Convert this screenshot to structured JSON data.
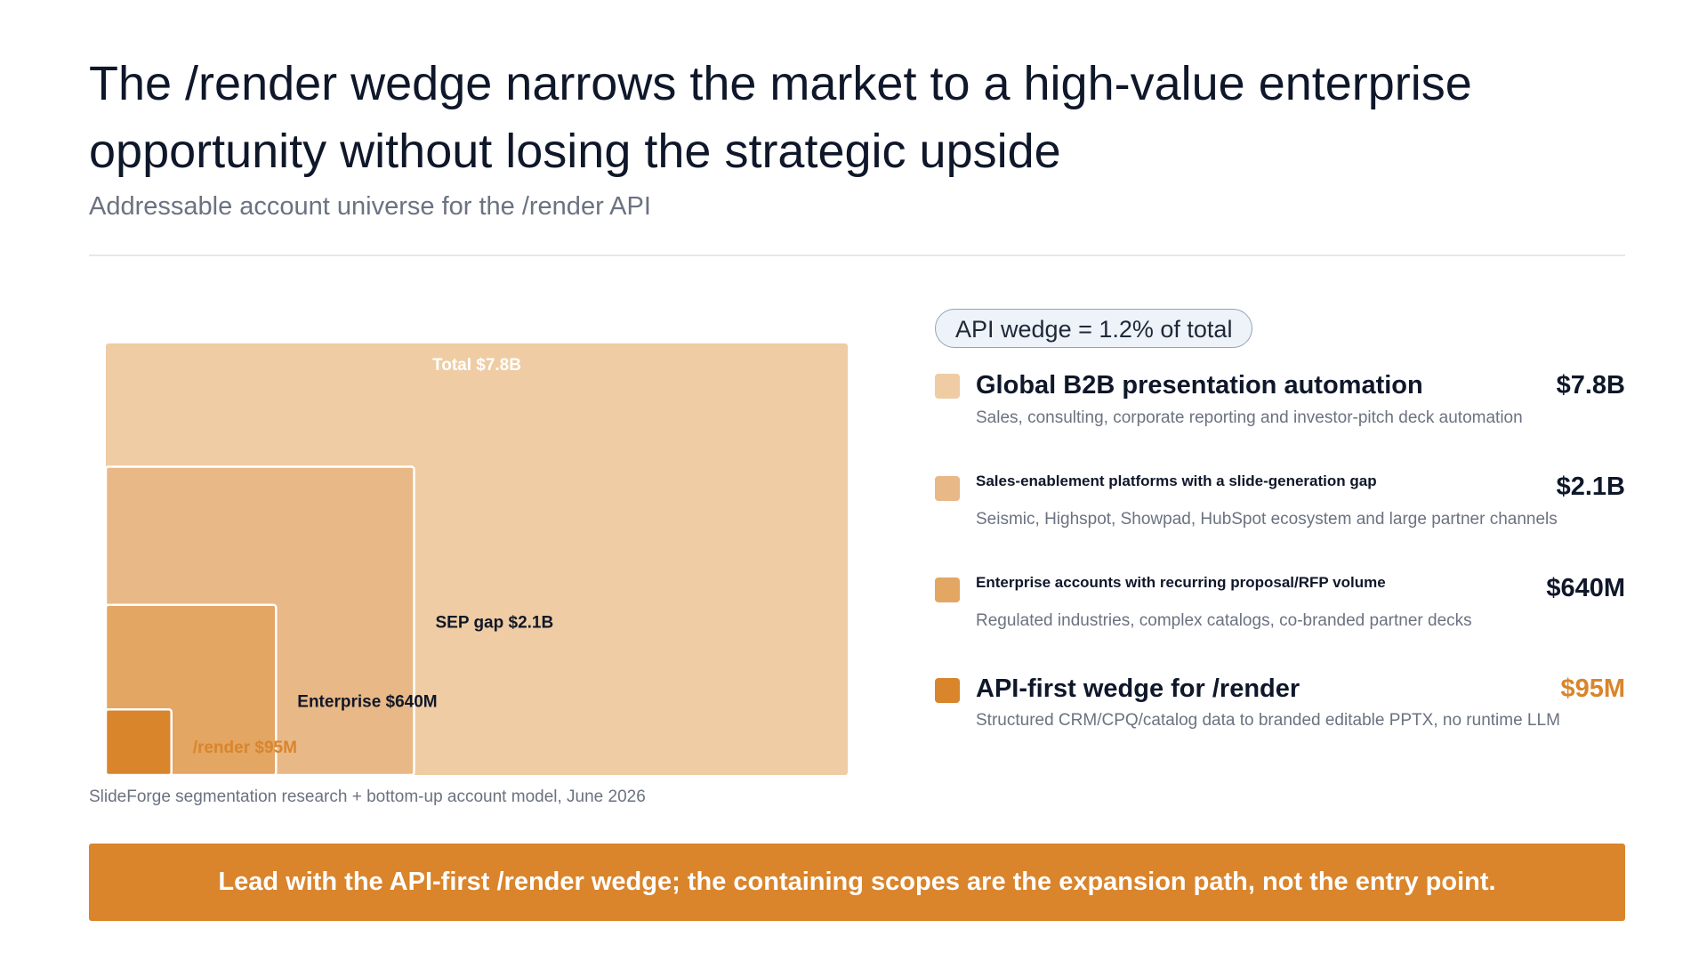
{
  "title": "The /render wedge narrows the market to a high-value enterprise opportunity without losing the strategic upside",
  "subtitle": "Addressable account universe for the /render API",
  "source": "SlideForge segmentation research + bottom-up account model, June 2026",
  "badge": "API wedge = 1.2% of total",
  "banner": "Lead with the API-first /render wedge; the containing scopes are the expansion path, not the entry point.",
  "legend": [
    {
      "label": "Global B2B presentation automation",
      "value": "$7.8B",
      "desc": "Sales, consulting, corporate reporting and investor-pitch deck automation",
      "color": "#efcca4"
    },
    {
      "label": "Sales-enablement platforms with a slide-generation gap",
      "value": "$2.1B",
      "desc": "Seismic, Highspot, Showpad, HubSpot ecosystem and large partner channels",
      "color": "#e9b887"
    },
    {
      "label": "Enterprise accounts with recurring proposal/RFP volume",
      "value": "$640M",
      "desc": "Regulated industries, complex catalogs, co-branded partner decks",
      "color": "#e3a663"
    },
    {
      "label": "API-first wedge for /render",
      "value": "$95M",
      "desc": "Structured CRM/CPQ/catalog data to branded editable PPTX, no runtime LLM",
      "color": "#d9852c"
    }
  ],
  "chart_data": {
    "type": "nested-area",
    "title": "",
    "unit": "USD",
    "items": [
      {
        "label": "Total $7.8B",
        "name": "Total",
        "value": 7800000000,
        "color": "#efcca4",
        "label_color": "#ffffff"
      },
      {
        "label": "SEP gap $2.1B",
        "name": "SEP gap",
        "value": 2100000000,
        "color": "#e9b887",
        "label_color": "#111827"
      },
      {
        "label": "Enterprise $640M",
        "name": "Enterprise",
        "value": 640000000,
        "color": "#e3a663",
        "label_color": "#111827"
      },
      {
        "label": "/render $95M",
        "name": "/render",
        "value": 95000000,
        "color": "#d9852c",
        "label_color": "#d9852c"
      }
    ]
  }
}
